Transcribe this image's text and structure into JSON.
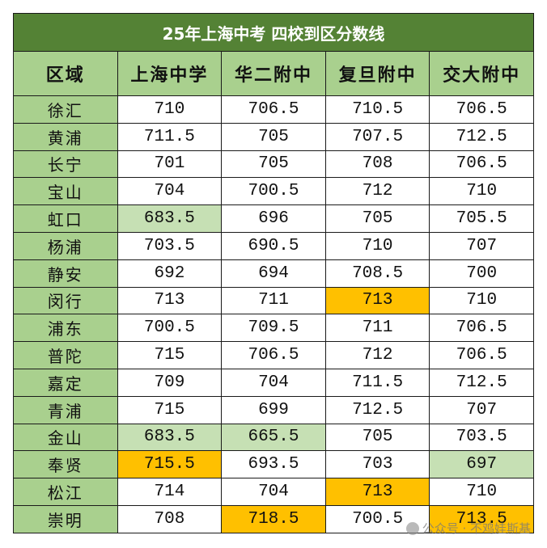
{
  "title": "25年上海中考 四校到区分数线",
  "headers": [
    "区域",
    "上海中学",
    "华二附中",
    "复旦附中",
    "交大附中"
  ],
  "colors": {
    "title_bg": "#548235",
    "header_bg": "#a9d08e",
    "district_bg": "#a9d08e",
    "low_highlight": "#c6e0b4",
    "high_highlight": "#ffc000"
  },
  "rows": [
    {
      "district": "徐汇",
      "values": [
        "710",
        "706.5",
        "710.5",
        "706.5"
      ],
      "marks": [
        "",
        "",
        "",
        ""
      ]
    },
    {
      "district": "黄浦",
      "values": [
        "711.5",
        "705",
        "707.5",
        "712.5"
      ],
      "marks": [
        "",
        "",
        "",
        ""
      ]
    },
    {
      "district": "长宁",
      "values": [
        "701",
        "705",
        "708",
        "706.5"
      ],
      "marks": [
        "",
        "",
        "",
        ""
      ]
    },
    {
      "district": "宝山",
      "values": [
        "704",
        "700.5",
        "712",
        "710"
      ],
      "marks": [
        "",
        "",
        "",
        ""
      ]
    },
    {
      "district": "虹口",
      "values": [
        "683.5",
        "696",
        "705",
        "705.5"
      ],
      "marks": [
        "low",
        "",
        "",
        ""
      ]
    },
    {
      "district": "杨浦",
      "values": [
        "703.5",
        "690.5",
        "710",
        "707"
      ],
      "marks": [
        "",
        "",
        "",
        ""
      ]
    },
    {
      "district": "静安",
      "values": [
        "692",
        "694",
        "708.5",
        "700"
      ],
      "marks": [
        "",
        "",
        "",
        ""
      ]
    },
    {
      "district": "闵行",
      "values": [
        "713",
        "711",
        "713",
        "710"
      ],
      "marks": [
        "",
        "",
        "high",
        ""
      ]
    },
    {
      "district": "浦东",
      "values": [
        "700.5",
        "709.5",
        "711",
        "706.5"
      ],
      "marks": [
        "",
        "",
        "",
        ""
      ]
    },
    {
      "district": "普陀",
      "values": [
        "715",
        "706.5",
        "712",
        "706.5"
      ],
      "marks": [
        "",
        "",
        "",
        ""
      ]
    },
    {
      "district": "嘉定",
      "values": [
        "709",
        "704",
        "711.5",
        "712.5"
      ],
      "marks": [
        "",
        "",
        "",
        ""
      ]
    },
    {
      "district": "青浦",
      "values": [
        "715",
        "699",
        "712.5",
        "707"
      ],
      "marks": [
        "",
        "",
        "",
        ""
      ]
    },
    {
      "district": "金山",
      "values": [
        "683.5",
        "665.5",
        "705",
        "703.5"
      ],
      "marks": [
        "low",
        "low",
        "",
        ""
      ]
    },
    {
      "district": "奉贤",
      "values": [
        "715.5",
        "693.5",
        "703",
        "697"
      ],
      "marks": [
        "high",
        "",
        "",
        "low"
      ]
    },
    {
      "district": "松江",
      "values": [
        "714",
        "704",
        "713",
        "710"
      ],
      "marks": [
        "",
        "",
        "high",
        ""
      ]
    },
    {
      "district": "崇明",
      "values": [
        "708",
        "718.5",
        "700.5",
        "713.5"
      ],
      "marks": [
        "",
        "high",
        "",
        "high"
      ]
    }
  ],
  "watermark": "公众号 · 不鸡娃斯基"
}
